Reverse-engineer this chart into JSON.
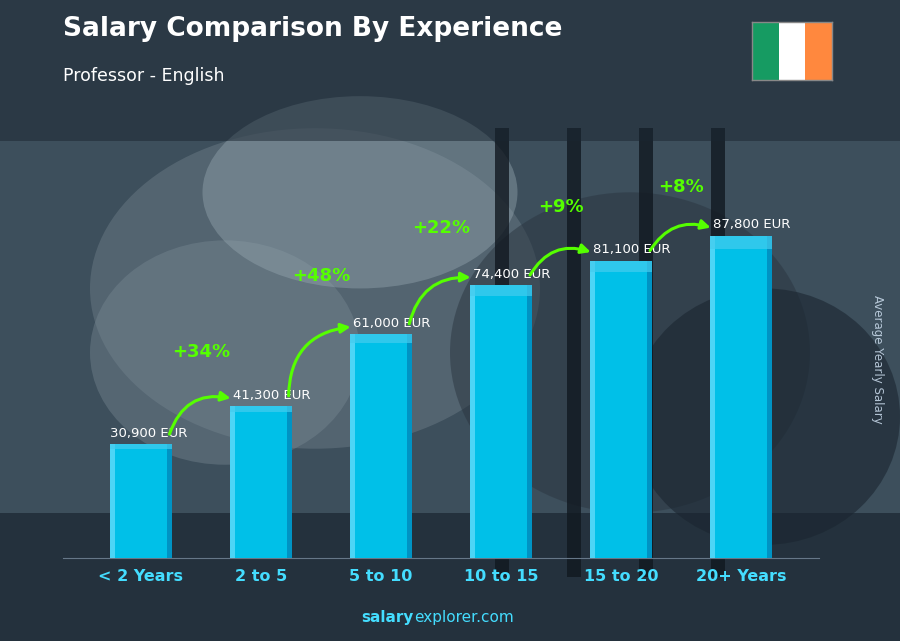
{
  "title": "Salary Comparison By Experience",
  "subtitle": "Professor - English",
  "categories": [
    "< 2 Years",
    "2 to 5",
    "5 to 10",
    "10 to 15",
    "15 to 20",
    "20+ Years"
  ],
  "values": [
    30900,
    41300,
    61000,
    74400,
    81100,
    87800
  ],
  "labels": [
    "30,900 EUR",
    "41,300 EUR",
    "61,000 EUR",
    "74,400 EUR",
    "81,100 EUR",
    "87,800 EUR"
  ],
  "pct_labels": [
    "+34%",
    "+48%",
    "+22%",
    "+9%",
    "+8%"
  ],
  "bar_color_main": "#00c0e8",
  "bar_color_left": "#55d8f8",
  "bar_color_right": "#0088bb",
  "bar_color_top": "#44ccee",
  "background_color": "#3a4a55",
  "title_color": "#ffffff",
  "subtitle_color": "#ffffff",
  "label_color": "#ffffff",
  "pct_color": "#55ff00",
  "xticklabel_color": "#44ddff",
  "watermark_color": "#44ddff",
  "watermark": "salaryexplorer.com",
  "ylabel_text": "Average Yearly Salary",
  "ylim": [
    0,
    105000
  ],
  "figsize": [
    9.0,
    6.41
  ],
  "dpi": 100,
  "ireland_flag_colors": [
    "#169b62",
    "#ffffff",
    "#ff883e"
  ],
  "arrow_color": "#55ff00"
}
